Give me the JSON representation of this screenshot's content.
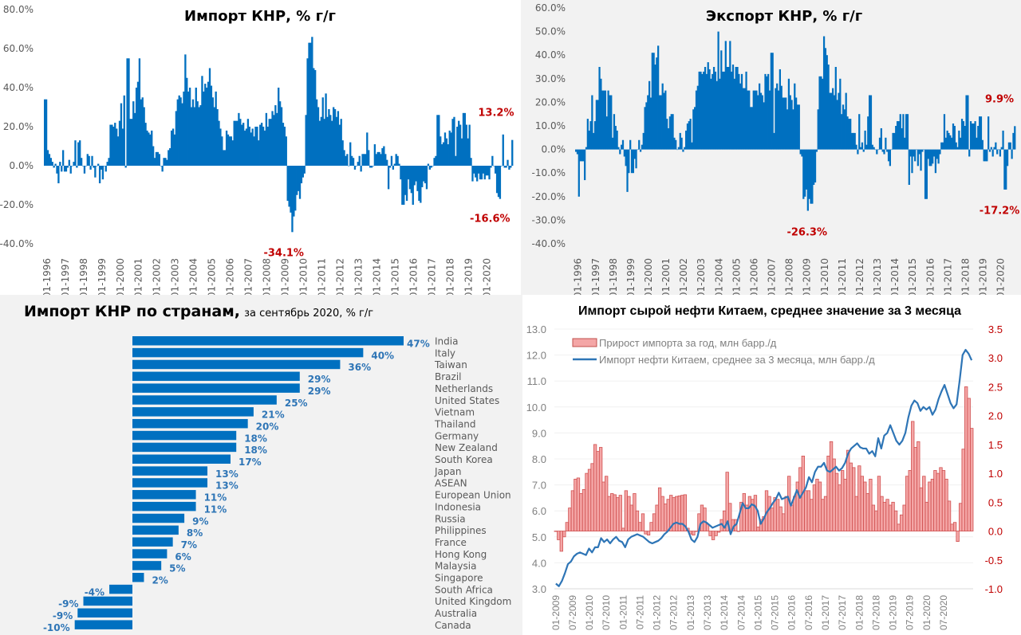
{
  "chart_data": [
    {
      "id": "import",
      "type": "bar",
      "title": "Импорт КНР, % г/г",
      "xlabel": "",
      "ylabel": "",
      "ylim": [
        -40,
        80
      ],
      "yticks": [
        "80.0%",
        "60.0%",
        "40.0%",
        "20.0%",
        "0.0%",
        "-20.0%",
        "-40.0%"
      ],
      "ytick_values": [
        80,
        60,
        40,
        20,
        0,
        -20,
        -40
      ],
      "xticks": [
        "01-1996",
        "01-1997",
        "01-1998",
        "01-1999",
        "01-2000",
        "01-2001",
        "01-2002",
        "01-2003",
        "01-2004",
        "01-2005",
        "01-2006",
        "01-2007",
        "01-2008",
        "01-2009",
        "01-2010",
        "01-2011",
        "01-2012",
        "01-2013",
        "01-2014",
        "01-2015",
        "01-2016",
        "01-2017",
        "01-2018",
        "01-2019",
        "01-2020"
      ],
      "start": "01-1996",
      "frequency": "monthly",
      "annotations": [
        {
          "text": "13.2%",
          "month_index": 296,
          "value": 13.2,
          "position": "above"
        },
        {
          "text": "-16.6%",
          "month_index": 292,
          "value": -16.6,
          "position": "below"
        },
        {
          "text": "-34.1%",
          "month_index": 157,
          "value": -34.1,
          "position": "below"
        }
      ],
      "values": [
        34,
        34,
        8,
        6,
        4,
        2,
        -1,
        1,
        -4,
        -9,
        2,
        -3,
        8,
        -3,
        -3,
        -1,
        3,
        -4,
        0,
        2,
        13,
        -1,
        12,
        13,
        4,
        0,
        -4,
        0,
        6,
        5,
        -2,
        5,
        -1,
        -6,
        0,
        1,
        -9,
        -2,
        -7,
        0,
        -3,
        2,
        4,
        21,
        21,
        20,
        22,
        19,
        15,
        23,
        32,
        19,
        36,
        -1,
        55,
        55,
        24,
        24,
        33,
        27,
        40,
        43,
        55,
        34,
        35,
        30,
        22,
        18,
        17,
        16,
        18,
        10,
        4,
        7,
        7,
        6,
        0,
        -3,
        4,
        4,
        3,
        8,
        9,
        18,
        19,
        16,
        28,
        34,
        36,
        35,
        32,
        38,
        57,
        45,
        38,
        40,
        30,
        34,
        30,
        40,
        33,
        30,
        31,
        46,
        38,
        42,
        40,
        43,
        50,
        41,
        35,
        30,
        38,
        29,
        23,
        19,
        15,
        8,
        8,
        18,
        16,
        15,
        15,
        13,
        23,
        23,
        23,
        27,
        24,
        21,
        22,
        18,
        19,
        24,
        20,
        17,
        19,
        15,
        20,
        20,
        13,
        21,
        22,
        20,
        18,
        27,
        20,
        24,
        24,
        28,
        26,
        31,
        27,
        40,
        33,
        30,
        22,
        20,
        15,
        -18,
        -21,
        -24,
        -34,
        -26,
        -23,
        -15,
        -13,
        -17,
        -9,
        -6,
        -4,
        26,
        55,
        63,
        63,
        66,
        50,
        49,
        34,
        30,
        23,
        25,
        35,
        24,
        37,
        25,
        29,
        26,
        23,
        30,
        29,
        25,
        28,
        21,
        24,
        13,
        8,
        5,
        6,
        0,
        12,
        5,
        4,
        -2,
        0,
        2,
        5,
        -3,
        6,
        6,
        6,
        17,
        8,
        -1,
        -1,
        0,
        11,
        6,
        7,
        7,
        6,
        9,
        10,
        6,
        3,
        -12,
        -1,
        5,
        -2,
        1,
        6,
        5,
        1,
        -7,
        -20,
        -20,
        -15,
        -18,
        -7,
        -12,
        -14,
        -20,
        -10,
        -8,
        -13,
        -18,
        -19,
        -11,
        -8,
        -9,
        -12,
        1,
        -2,
        -1,
        0,
        4,
        5,
        26,
        26,
        15,
        11,
        12,
        17,
        14,
        11,
        18,
        17,
        24,
        25,
        5,
        20,
        23,
        21,
        14,
        27,
        27,
        21,
        14,
        21,
        4,
        -8,
        -4,
        -6,
        -8,
        -4,
        -7,
        -7,
        -4,
        -7,
        -5,
        -5,
        -7,
        -1,
        5,
        0,
        -4,
        -14,
        -16,
        -17,
        0,
        16,
        -1,
        -1,
        3,
        -2,
        -1,
        13.2
      ]
    },
    {
      "id": "export",
      "type": "bar",
      "title": "Экспорт КНР, % г/г",
      "xlabel": "",
      "ylabel": "",
      "ylim": [
        -40,
        60
      ],
      "yticks": [
        "60.0%",
        "50.0%",
        "40.0%",
        "30.0%",
        "20.0%",
        "10.0%",
        "0.0%",
        "-10.0%",
        "-20.0%",
        "-30.0%",
        "-40.0%"
      ],
      "ytick_values": [
        60,
        50,
        40,
        30,
        20,
        10,
        0,
        -10,
        -20,
        -30,
        -40
      ],
      "xticks": [
        "01-1996",
        "01-1997",
        "01-1998",
        "01-1999",
        "01-2000",
        "01-2001",
        "01-2002",
        "01-2003",
        "01-2004",
        "01-2005",
        "01-2006",
        "01-2007",
        "01-2008",
        "01-2009",
        "01-2010",
        "01-2011",
        "01-2012",
        "01-2013",
        "01-2014",
        "01-2015",
        "01-2016",
        "01-2017",
        "01-2018",
        "01-2019",
        "01-2020"
      ],
      "start": "01-1996",
      "frequency": "monthly",
      "annotations": [
        {
          "text": "9.9%",
          "month_index": 296,
          "value": 9.9,
          "position": "above"
        },
        {
          "text": "-17.2%",
          "month_index": 290,
          "value": -17.2,
          "position": "below"
        },
        {
          "text": "-26.3%",
          "month_index": 158,
          "value": -26.3,
          "position": "below"
        }
      ],
      "values": [
        -1,
        -2,
        -20,
        -5,
        -5,
        -5,
        -13,
        1,
        13,
        8,
        12,
        23,
        7,
        12,
        21,
        21,
        35,
        30,
        25,
        25,
        25,
        14,
        25,
        23,
        23,
        5,
        15,
        10,
        8,
        1,
        -2,
        2,
        4,
        -3,
        -7,
        -18,
        -10,
        4,
        -10,
        -10,
        -4,
        -8,
        0,
        4,
        -1,
        2,
        7,
        18,
        20,
        23,
        29,
        22,
        41,
        41,
        36,
        39,
        44,
        23,
        23,
        28,
        24,
        25,
        13,
        9,
        14,
        15,
        15,
        5,
        4,
        0,
        1,
        7,
        5,
        -1,
        1,
        8,
        11,
        12,
        13,
        3,
        17,
        18,
        25,
        27,
        33,
        33,
        32,
        33,
        35,
        32,
        37,
        34,
        30,
        32,
        35,
        33,
        29,
        50,
        30,
        42,
        33,
        33,
        46,
        35,
        35,
        46,
        33,
        36,
        30,
        35,
        35,
        32,
        28,
        32,
        26,
        26,
        33,
        25,
        25,
        18,
        18,
        25,
        25,
        25,
        23,
        28,
        24,
        23,
        20,
        32,
        31,
        32,
        25,
        41,
        41,
        7,
        26,
        28,
        25,
        34,
        27,
        22,
        22,
        22,
        17,
        30,
        23,
        21,
        17,
        28,
        22,
        19,
        19,
        -2,
        -3,
        -21,
        -20,
        -17,
        -26,
        -21,
        -23,
        -23,
        -15,
        -14,
        -1,
        17,
        31,
        31,
        30,
        48,
        43,
        40,
        36,
        24,
        24,
        26,
        23,
        35,
        21,
        24,
        30,
        15,
        19,
        17,
        24,
        14,
        13,
        13,
        7,
        7,
        7,
        2,
        -2,
        15,
        1,
        3,
        -1,
        8,
        2,
        14,
        23,
        23,
        2,
        1,
        0,
        -2,
        0,
        5,
        9,
        -1,
        -2,
        5,
        -1,
        -5,
        -7,
        0,
        7,
        7,
        10,
        12,
        12,
        15,
        9,
        15,
        5,
        15,
        15,
        -15,
        -3,
        -10,
        -3,
        -5,
        0,
        -7,
        -2,
        -9,
        -1,
        0,
        -21,
        -21,
        -4,
        -7,
        -7,
        -6,
        -3,
        -10,
        -4,
        -6,
        -2,
        3,
        3,
        15,
        5,
        8,
        7,
        6,
        5,
        11,
        10,
        3,
        1,
        8,
        5,
        13,
        12,
        10,
        23,
        23,
        -3,
        12,
        11,
        11,
        12,
        5,
        10,
        14,
        14,
        4,
        -5,
        -5,
        -5,
        14,
        -1,
        1,
        -3,
        1,
        3,
        -2,
        0,
        -3,
        1,
        8,
        -17,
        -17,
        -7,
        3,
        3,
        -4,
        7,
        9.9
      ]
    },
    {
      "id": "countries",
      "type": "bar",
      "orientation": "horizontal",
      "title": "Импорт КНР по странам,",
      "subtitle": "за сентябрь 2020, % г/г",
      "categories": [
        "India",
        "Italy",
        "Taiwan",
        "Brazil",
        "Netherlands",
        "United States",
        "Vietnam",
        "Thailand",
        "Germany",
        "New Zealand",
        "South Korea",
        "Japan",
        "ASEAN",
        "European Union",
        "Indonesia",
        "Russia",
        "Philippines",
        "France",
        "Hong Kong",
        "Malaysia",
        "Singapore",
        "South Africa",
        "United Kingdom",
        "Australia",
        "Canada"
      ],
      "values": [
        47,
        40,
        36,
        29,
        29,
        25,
        21,
        20,
        18,
        18,
        17,
        13,
        13,
        11,
        11,
        9,
        8,
        7,
        6,
        5,
        2,
        -4,
        -8.5,
        -9.5,
        -10
      ],
      "data_labels": [
        "47%",
        "40%",
        "36%",
        "29%",
        "29%",
        "25%",
        "21%",
        "20%",
        "18%",
        "18%",
        "17%",
        "13%",
        "13%",
        "11%",
        "11%",
        "9%",
        "8%",
        "7%",
        "6%",
        "5%",
        "2%",
        "-4%",
        "-9%",
        "-9%",
        "-10%"
      ]
    },
    {
      "id": "oil",
      "type": "bar+line",
      "title": "Импорт сырой нефти Китаем, среднее значение за 3 месяца",
      "start": "01-2009",
      "frequency": "monthly",
      "ylim_left": [
        3.0,
        13.0
      ],
      "ylim_right": [
        -1.0,
        3.5
      ],
      "yticks_left": [
        "13.0",
        "12.0",
        "11.0",
        "10.0",
        "9.0",
        "8.0",
        "7.0",
        "6.0",
        "5.0",
        "4.0",
        "3.0"
      ],
      "yticks_left_values": [
        13,
        12,
        11,
        10,
        9,
        8,
        7,
        6,
        5,
        4,
        3
      ],
      "yticks_right": [
        "3.5",
        "3.0",
        "2.5",
        "2.0",
        "1.5",
        "1.0",
        "0.5",
        "0.0",
        "-0.5",
        "-1.0"
      ],
      "yticks_right_values": [
        3.5,
        3.0,
        2.5,
        2.0,
        1.5,
        1.0,
        0.5,
        0.0,
        -0.5,
        -1.0
      ],
      "xticks": [
        "01-2009",
        "07-2009",
        "01-2010",
        "07-2010",
        "01-2011",
        "07-2011",
        "01-2012",
        "07-2012",
        "01-2013",
        "07-2013",
        "01-2014",
        "07-2014",
        "01-2015",
        "07-2015",
        "01-2016",
        "07-2016",
        "01-2017",
        "07-2017",
        "01-2018",
        "07-2018",
        "01-2019",
        "07-2019",
        "01-2020",
        "07-2020"
      ],
      "series": [
        {
          "name": "Прирост импорта за год, млн барр./д",
          "axis": "right",
          "type": "bar",
          "color": "#f4a6a6",
          "edge": "#d05050",
          "values": [
            0.0,
            -0.15,
            -0.35,
            -0.1,
            0.15,
            0.4,
            0.7,
            0.9,
            0.92,
            0.65,
            0.72,
            1.0,
            1.07,
            1.17,
            1.5,
            1.38,
            1.45,
            0.85,
            0.95,
            0.6,
            0.65,
            0.63,
            0.58,
            0.62,
            0.05,
            0.7,
            0.6,
            0.45,
            0.65,
            0.35,
            0.15,
            0.3,
            -0.05,
            -0.07,
            0.15,
            0.3,
            0.45,
            0.75,
            0.6,
            0.47,
            0.55,
            0.62,
            0.58,
            0.6,
            0.61,
            0.62,
            0.63,
            0.05,
            -0.05,
            -0.07,
            0.0,
            0.3,
            0.45,
            0.4,
            0.12,
            -0.08,
            -0.15,
            -0.08,
            -0.02,
            0.2,
            0.35,
            1.02,
            0.48,
            0.2,
            0.2,
            0.0,
            0.5,
            0.65,
            0.45,
            0.6,
            0.55,
            0.62,
            0.07,
            0.2,
            0.25,
            0.7,
            0.6,
            0.4,
            0.58,
            0.55,
            0.42,
            0.3,
            0.6,
            0.95,
            0.45,
            0.6,
            0.85,
            1.1,
            1.3,
            0.7,
            0.7,
            0.55,
            0.8,
            0.9,
            0.85,
            0.55,
            0.6,
            1.3,
            1.55,
            1.25,
            1.0,
            0.8,
            1.05,
            0.9,
            1.4,
            1.18,
            1.1,
            0.6,
            1.13,
            0.95,
            0.85,
            0.65,
            0.9,
            0.45,
            0.35,
            0.95,
            0.6,
            0.5,
            0.55,
            0.45,
            0.5,
            0.35,
            0.12,
            0.28,
            0.45,
            0.95,
            1.05,
            1.9,
            1.45,
            1.55,
            0.75,
            0.95,
            0.5,
            0.85,
            0.9,
            1.05,
            1.0,
            1.1,
            1.05,
            0.9,
            0.52,
            0.12,
            0.15,
            -0.18,
            0.48,
            1.42,
            2.5,
            2.3,
            1.78
          ]
        },
        {
          "name": "Импорт нефти Китаем, среднее за 3 месяца, млн барр./д",
          "axis": "left",
          "type": "line",
          "color": "#2e75b6",
          "values": [
            3.2,
            3.1,
            3.3,
            3.6,
            3.95,
            4.05,
            4.25,
            4.35,
            4.4,
            4.35,
            4.3,
            4.55,
            4.4,
            4.6,
            4.6,
            4.95,
            4.8,
            4.9,
            4.75,
            4.9,
            5.0,
            4.85,
            4.8,
            4.6,
            4.9,
            5.0,
            5.05,
            5.1,
            5.05,
            5.0,
            4.9,
            4.8,
            4.75,
            4.8,
            4.85,
            4.95,
            5.1,
            5.2,
            5.35,
            5.5,
            5.55,
            5.5,
            5.5,
            5.4,
            5.2,
            4.9,
            4.8,
            5.0,
            5.5,
            5.6,
            5.55,
            5.45,
            5.35,
            5.4,
            5.45,
            5.5,
            5.35,
            5.6,
            5.1,
            5.4,
            5.5,
            5.9,
            6.3,
            6.1,
            6.1,
            6.25,
            6.2,
            6.0,
            5.5,
            5.7,
            5.95,
            6.1,
            6.3,
            6.45,
            6.7,
            6.45,
            6.5,
            6.55,
            6.2,
            6.5,
            6.8,
            6.5,
            6.7,
            6.9,
            7.3,
            7.1,
            7.5,
            7.7,
            7.7,
            7.85,
            7.55,
            7.5,
            7.6,
            7.7,
            7.55,
            7.65,
            7.85,
            8.2,
            8.4,
            8.5,
            8.6,
            8.45,
            8.4,
            8.4,
            8.2,
            8.3,
            8.1,
            8.8,
            8.4,
            8.9,
            9.0,
            9.3,
            9.0,
            8.7,
            8.55,
            8.7,
            9.0,
            9.6,
            10.05,
            10.25,
            10.15,
            9.85,
            10.0,
            9.9,
            10.0,
            9.7,
            9.9,
            10.3,
            10.6,
            10.85,
            10.5,
            10.15,
            9.95,
            10.1,
            11.0,
            12.0,
            12.2,
            12.05,
            11.8
          ]
        }
      ]
    }
  ]
}
